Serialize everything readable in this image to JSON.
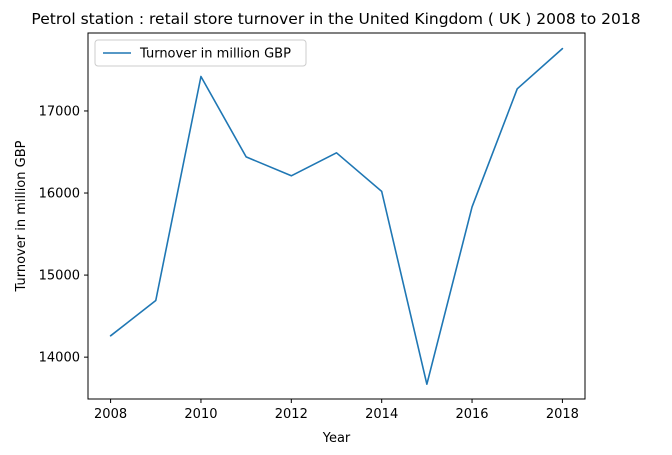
{
  "chart_data": {
    "type": "line",
    "title": "Petrol station : retail store turnover in the United Kingdom ( UK ) 2008 to 2018",
    "xlabel": "Year",
    "ylabel": "Turnover in million GBP",
    "x": [
      2008,
      2009,
      2010,
      2011,
      2012,
      2013,
      2014,
      2015,
      2016,
      2017,
      2018
    ],
    "series": [
      {
        "name": "Turnover in million GBP",
        "color": "#1f77b4",
        "values": [
          14260,
          14690,
          17420,
          16440,
          16210,
          16490,
          16020,
          13670,
          15830,
          17270,
          17760
        ]
      }
    ],
    "xlim": [
      2007.5,
      2018.5
    ],
    "ylim": [
      13490,
      17950
    ],
    "xticks": [
      2008,
      2010,
      2012,
      2014,
      2016,
      2018
    ],
    "yticks": [
      14000,
      15000,
      16000,
      17000
    ],
    "grid": false,
    "legend_position": "top-left"
  }
}
